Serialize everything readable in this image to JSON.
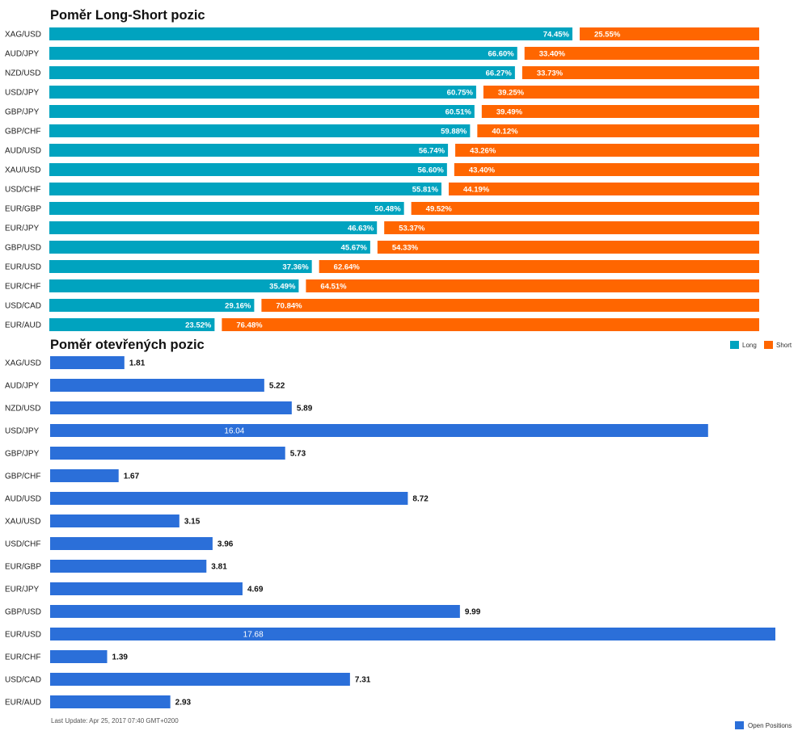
{
  "chart_data": [
    {
      "type": "bar",
      "stacked": true,
      "orientation": "horizontal",
      "title": "Poměr Long-Short pozic",
      "categories": [
        "XAG/USD",
        "AUD/JPY",
        "NZD/USD",
        "USD/JPY",
        "GBP/JPY",
        "GBP/CHF",
        "AUD/USD",
        "XAU/USD",
        "USD/CHF",
        "EUR/GBP",
        "EUR/JPY",
        "GBP/USD",
        "EUR/USD",
        "EUR/CHF",
        "USD/CAD",
        "EUR/AUD"
      ],
      "series": [
        {
          "name": "Long",
          "color": "#00a3bf",
          "values": [
            74.45,
            66.6,
            66.27,
            60.75,
            60.51,
            59.88,
            56.74,
            56.6,
            55.81,
            50.48,
            46.63,
            45.67,
            37.36,
            35.49,
            29.16,
            23.52
          ],
          "labels": [
            "74.45%",
            "66.60%",
            "66.27%",
            "60.75%",
            "60.51%",
            "59.88%",
            "56.74%",
            "56.60%",
            "55.81%",
            "50.48%",
            "46.63%",
            "45.67%",
            "37.36%",
            "35.49%",
            "29.16%",
            "23.52%"
          ]
        },
        {
          "name": "Short",
          "color": "#ff6600",
          "values": [
            25.55,
            33.4,
            33.73,
            39.25,
            39.49,
            40.12,
            43.26,
            43.4,
            44.19,
            49.52,
            53.37,
            54.33,
            62.64,
            64.51,
            70.84,
            76.48
          ],
          "labels": [
            "25.55%",
            "33.40%",
            "33.73%",
            "39.25%",
            "39.49%",
            "40.12%",
            "43.26%",
            "43.40%",
            "44.19%",
            "49.52%",
            "53.37%",
            "54.33%",
            "62.64%",
            "64.51%",
            "70.84%",
            "76.48%"
          ]
        }
      ],
      "xlim": [
        0,
        100
      ],
      "legend": "bottom-right"
    },
    {
      "type": "bar",
      "orientation": "horizontal",
      "title": "Poměr otevřených pozic",
      "categories": [
        "XAG/USD",
        "AUD/JPY",
        "NZD/USD",
        "USD/JPY",
        "GBP/JPY",
        "GBP/CHF",
        "AUD/USD",
        "XAU/USD",
        "USD/CHF",
        "EUR/GBP",
        "EUR/JPY",
        "GBP/USD",
        "EUR/USD",
        "EUR/CHF",
        "USD/CAD",
        "EUR/AUD"
      ],
      "series": [
        {
          "name": "Open Positions",
          "color": "#2b6fd9",
          "values": [
            1.81,
            5.22,
            5.89,
            16.04,
            5.73,
            1.67,
            8.72,
            3.15,
            3.96,
            3.81,
            4.69,
            9.99,
            17.68,
            1.39,
            7.31,
            2.93
          ],
          "labels": [
            "1.81",
            "5.22",
            "5.89",
            "16.04",
            "5.73",
            "1.67",
            "8.72",
            "3.15",
            "3.96",
            "3.81",
            "4.69",
            "9.99",
            "17.68",
            "1.39",
            "7.31",
            "2.93"
          ]
        }
      ],
      "xlim": [
        0,
        17.68
      ],
      "legend": "bottom-right",
      "footer": "Last Update: Apr 25, 2017 07:40 GMT+0200"
    }
  ]
}
